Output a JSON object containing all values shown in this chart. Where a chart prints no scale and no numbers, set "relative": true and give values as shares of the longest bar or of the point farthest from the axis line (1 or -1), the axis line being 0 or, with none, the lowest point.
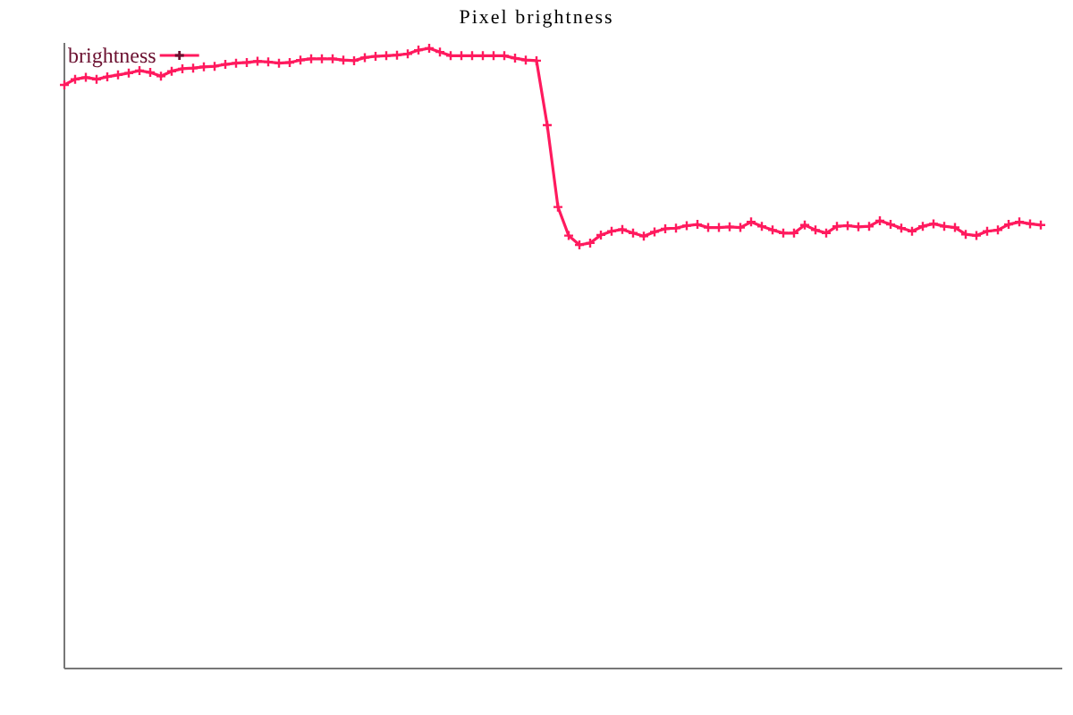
{
  "chart_data": {
    "type": "line",
    "title": "Pixel brightness",
    "relative": true,
    "legend": "top left",
    "marker": "cross",
    "line_style": "solid",
    "categories": [
      null,
      null,
      null,
      null,
      null,
      null,
      null,
      null,
      null,
      null,
      null,
      null,
      null,
      null,
      null,
      null,
      null,
      null,
      null,
      null,
      null,
      null,
      null,
      null,
      null,
      null,
      null,
      null,
      null,
      null,
      null,
      null,
      null,
      null,
      null,
      null,
      null,
      null,
      null,
      null,
      null,
      null,
      null,
      null,
      null,
      null,
      null,
      null,
      null,
      null,
      null,
      null,
      null,
      null,
      null,
      null,
      null,
      null,
      null,
      null,
      null,
      null,
      null,
      null,
      null,
      null,
      null,
      null,
      null,
      null,
      null,
      null,
      null,
      null,
      null,
      null,
      null,
      null,
      null,
      null,
      null,
      null,
      null,
      null,
      null,
      null,
      null,
      null,
      null,
      null,
      null,
      null
    ],
    "series": [
      {
        "name": "brightness",
        "color": "#ff1a5e",
        "values": [
          0.941,
          0.95,
          0.953,
          0.95,
          0.954,
          0.957,
          0.96,
          0.964,
          0.961,
          0.955,
          0.963,
          0.967,
          0.968,
          0.97,
          0.971,
          0.974,
          0.976,
          0.977,
          0.979,
          0.978,
          0.976,
          0.977,
          0.981,
          0.983,
          0.983,
          0.983,
          0.981,
          0.98,
          0.985,
          0.987,
          0.988,
          0.989,
          0.991,
          0.997,
          1,
          0.994,
          0.988,
          0.988,
          0.988,
          0.988,
          0.988,
          0.988,
          0.984,
          0.981,
          0.98,
          0.876,
          0.744,
          0.698,
          0.683,
          0.686,
          0.699,
          0.705,
          0.708,
          0.702,
          0.697,
          0.704,
          0.709,
          0.71,
          0.714,
          0.716,
          0.711,
          0.711,
          0.712,
          0.711,
          0.72,
          0.713,
          0.707,
          0.702,
          0.702,
          0.715,
          0.707,
          0.702,
          0.713,
          0.714,
          0.712,
          0.713,
          0.722,
          0.716,
          0.71,
          0.705,
          0.713,
          0.717,
          0.713,
          0.711,
          0.7,
          0.698,
          0.705,
          0.707,
          0.716,
          0.72,
          0.717,
          0.715
        ]
      }
    ]
  }
}
